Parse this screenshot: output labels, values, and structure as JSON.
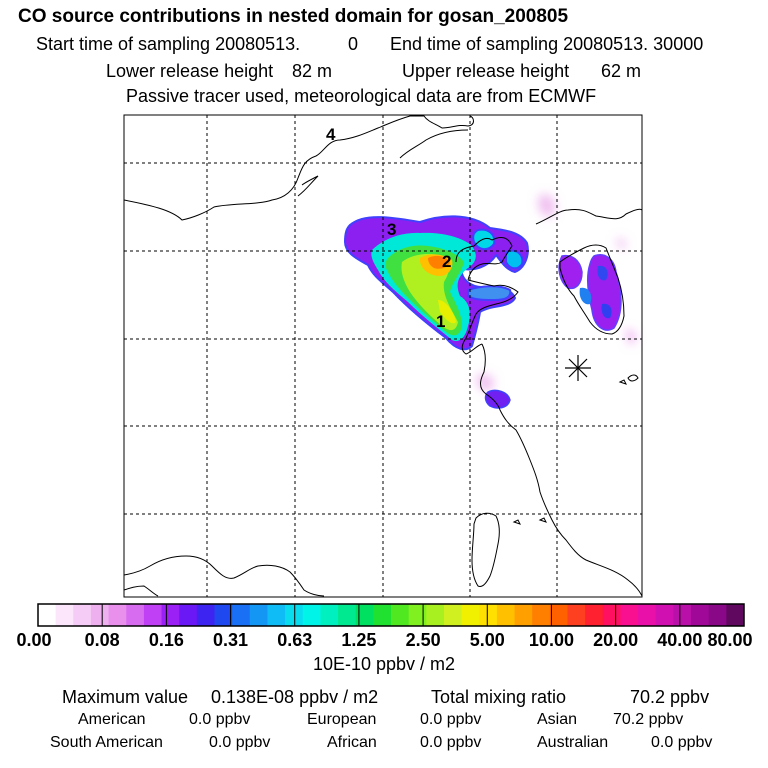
{
  "title": "CO  source contributions in nested domain for gosan_200805",
  "sampling": {
    "start_label": "Start time of sampling 20080513.",
    "start_value": "0",
    "end_label": "End time of sampling 20080513. 30000"
  },
  "release": {
    "lower_label": "Lower release height",
    "lower_value": "82 m",
    "upper_label": "Upper release height",
    "upper_value": "62 m"
  },
  "note": "Passive tracer used, meteorological data are from ECMWF",
  "chart_data": {
    "type": "heatmap",
    "title": "CO  source contributions in nested domain for gosan_200805",
    "unit": "10E-10 ppbv / m2",
    "colorbar_labels": [
      "0.00",
      "0.08",
      "0.16",
      "0.31",
      "0.63",
      "1.25",
      "2.50",
      "5.00",
      "10.00",
      "20.00",
      "40.00",
      "80.00"
    ],
    "colors": [
      "#ffffff",
      "#fbe6fb",
      "#f5ccf5",
      "#efb0f0",
      "#e890ec",
      "#d86cf0",
      "#c040f5",
      "#9a20f5",
      "#6a18f5",
      "#3d24f0",
      "#2048f0",
      "#1a70f5",
      "#1496f5",
      "#10bcf5",
      "#0adcf0",
      "#00f5e8",
      "#00f0c0",
      "#00e890",
      "#00e060",
      "#20e030",
      "#50e820",
      "#80f020",
      "#a8f020",
      "#d0f020",
      "#f0f000",
      "#ffe000",
      "#ffc000",
      "#ffa000",
      "#ff8000",
      "#ff6000",
      "#ff4020",
      "#ff2030",
      "#ff1060",
      "#f81090",
      "#e810a8",
      "#d010b0",
      "#b810a8",
      "#a00898",
      "#880888",
      "#600860"
    ],
    "markers": [
      {
        "label": "1"
      },
      {
        "label": "2"
      },
      {
        "label": "3"
      },
      {
        "label": "4"
      }
    ],
    "receptor": "gosan"
  },
  "stats": {
    "max_label": "Maximum value",
    "max_value": "0.138E-08 ppbv / m2",
    "total_label": "Total mixing ratio",
    "total_value": "70.2 ppbv",
    "regions": [
      {
        "name": "American",
        "value": "0.0 ppbv"
      },
      {
        "name": "European",
        "value": "0.0 ppbv"
      },
      {
        "name": "Asian",
        "value": "70.2 ppbv"
      },
      {
        "name": "South American",
        "value": "0.0 ppbv"
      },
      {
        "name": "African",
        "value": "0.0 ppbv"
      },
      {
        "name": "Australian",
        "value": "0.0 ppbv"
      }
    ]
  }
}
